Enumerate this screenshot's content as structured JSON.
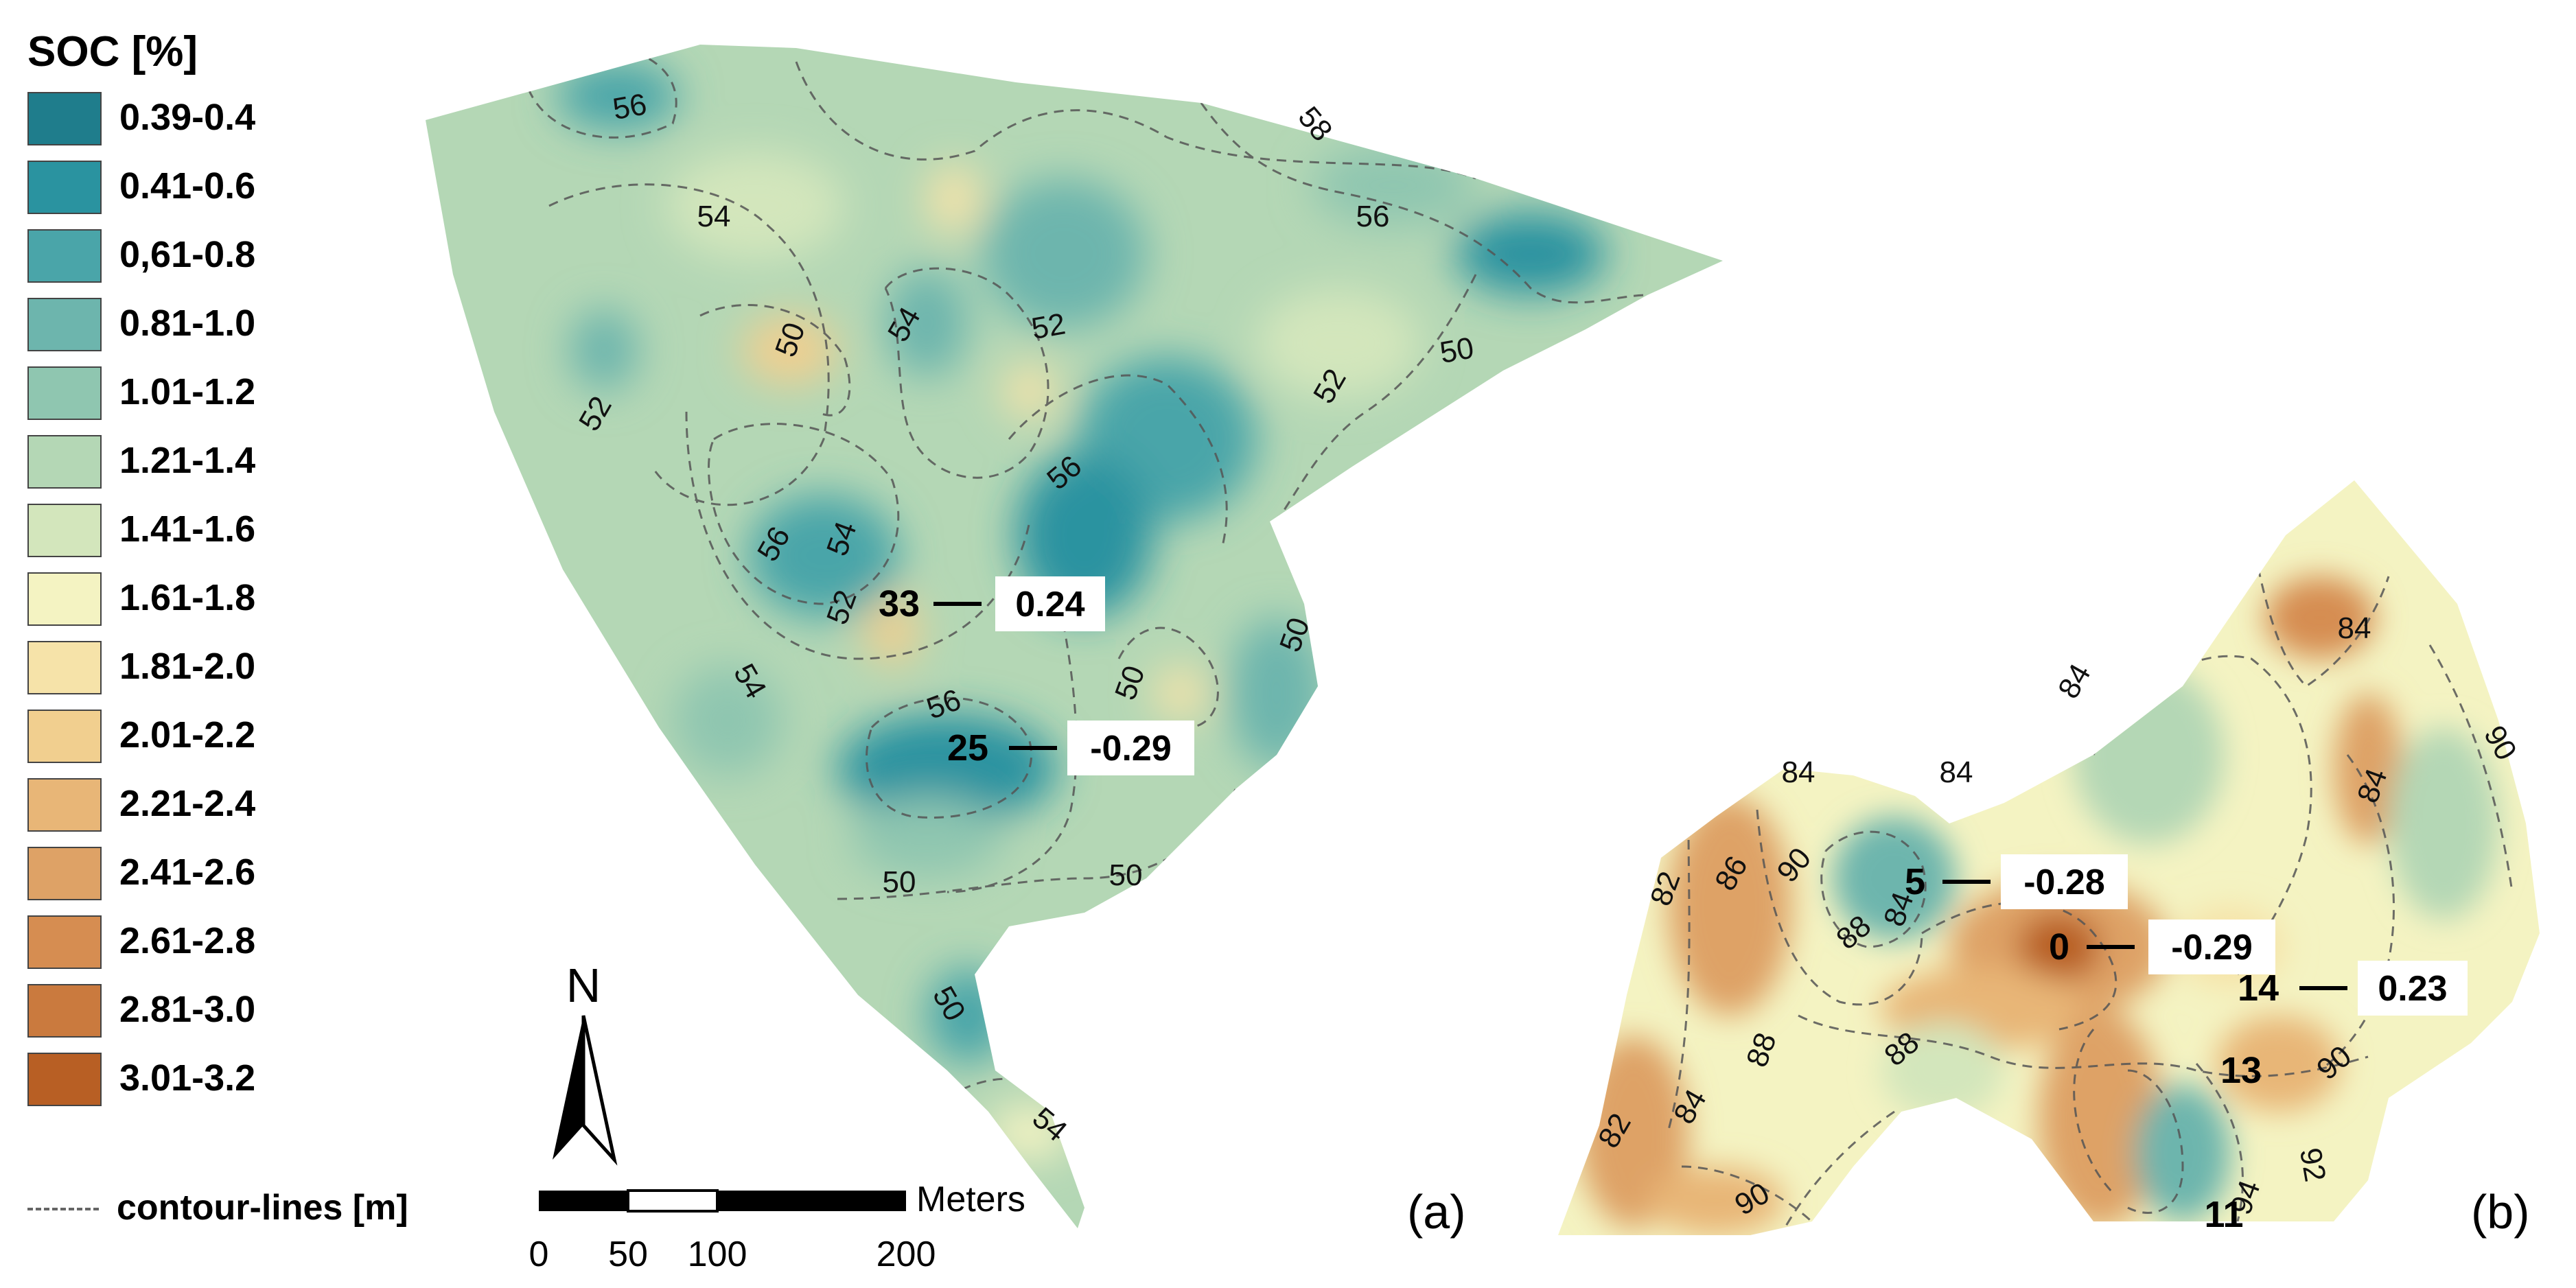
{
  "legend": {
    "title": "SOC [%]",
    "classes": [
      {
        "label": "0.39-0.4",
        "color": "#1f7d8c"
      },
      {
        "label": "0.41-0.6",
        "color": "#2a93a0"
      },
      {
        "label": "0,61-0.8",
        "color": "#4aa5a9"
      },
      {
        "label": "0.81-1.0",
        "color": "#6db5ad"
      },
      {
        "label": "1.01-1.2",
        "color": "#8fc6b0"
      },
      {
        "label": "1.21-1.4",
        "color": "#b4d7b5"
      },
      {
        "label": "1.41-1.6",
        "color": "#d3e6bc"
      },
      {
        "label": "1.61-1.8",
        "color": "#f4f3c2"
      },
      {
        "label": "1.81-2.0",
        "color": "#f6e3a9"
      },
      {
        "label": "2.01-2.2",
        "color": "#f1cf8f"
      },
      {
        "label": "2.21-2.4",
        "color": "#e8b677"
      },
      {
        "label": "2.41-2.6",
        "color": "#dea266"
      },
      {
        "label": "2.61-2.8",
        "color": "#d68d51"
      },
      {
        "label": "2.81-3.0",
        "color": "#ca7a3e"
      },
      {
        "label": "3.01-3.2",
        "color": "#b85f24"
      }
    ],
    "contour_label": "contour-lines [m]"
  },
  "north_label": "N",
  "scale_bar": {
    "unit_label": "Meters",
    "ticks": [
      "0",
      "50",
      "100",
      "200"
    ]
  },
  "panel_a": {
    "label": "(a)",
    "contour_labels": [
      "56",
      "58",
      "54",
      "56",
      "50",
      "54",
      "52",
      "52",
      "52",
      "50",
      "56",
      "56",
      "54",
      "52",
      "54",
      "56",
      "50",
      "50",
      "50",
      "50",
      "50",
      "54"
    ],
    "points": [
      {
        "id": "33",
        "corr": "0.24"
      },
      {
        "id": "25",
        "corr": "-0.29"
      }
    ]
  },
  "panel_b": {
    "label": "(b)",
    "contour_labels": [
      "84",
      "84",
      "84",
      "84",
      "90",
      "84",
      "82",
      "86",
      "90",
      "88",
      "84",
      "88",
      "82",
      "84",
      "88",
      "90",
      "90",
      "94",
      "92"
    ],
    "points": [
      {
        "id": "5",
        "corr": "-0.28"
      },
      {
        "id": "0",
        "corr": "-0.29"
      },
      {
        "id": "14",
        "corr": "0.23"
      },
      {
        "id": "13"
      },
      {
        "id": "11"
      }
    ]
  }
}
